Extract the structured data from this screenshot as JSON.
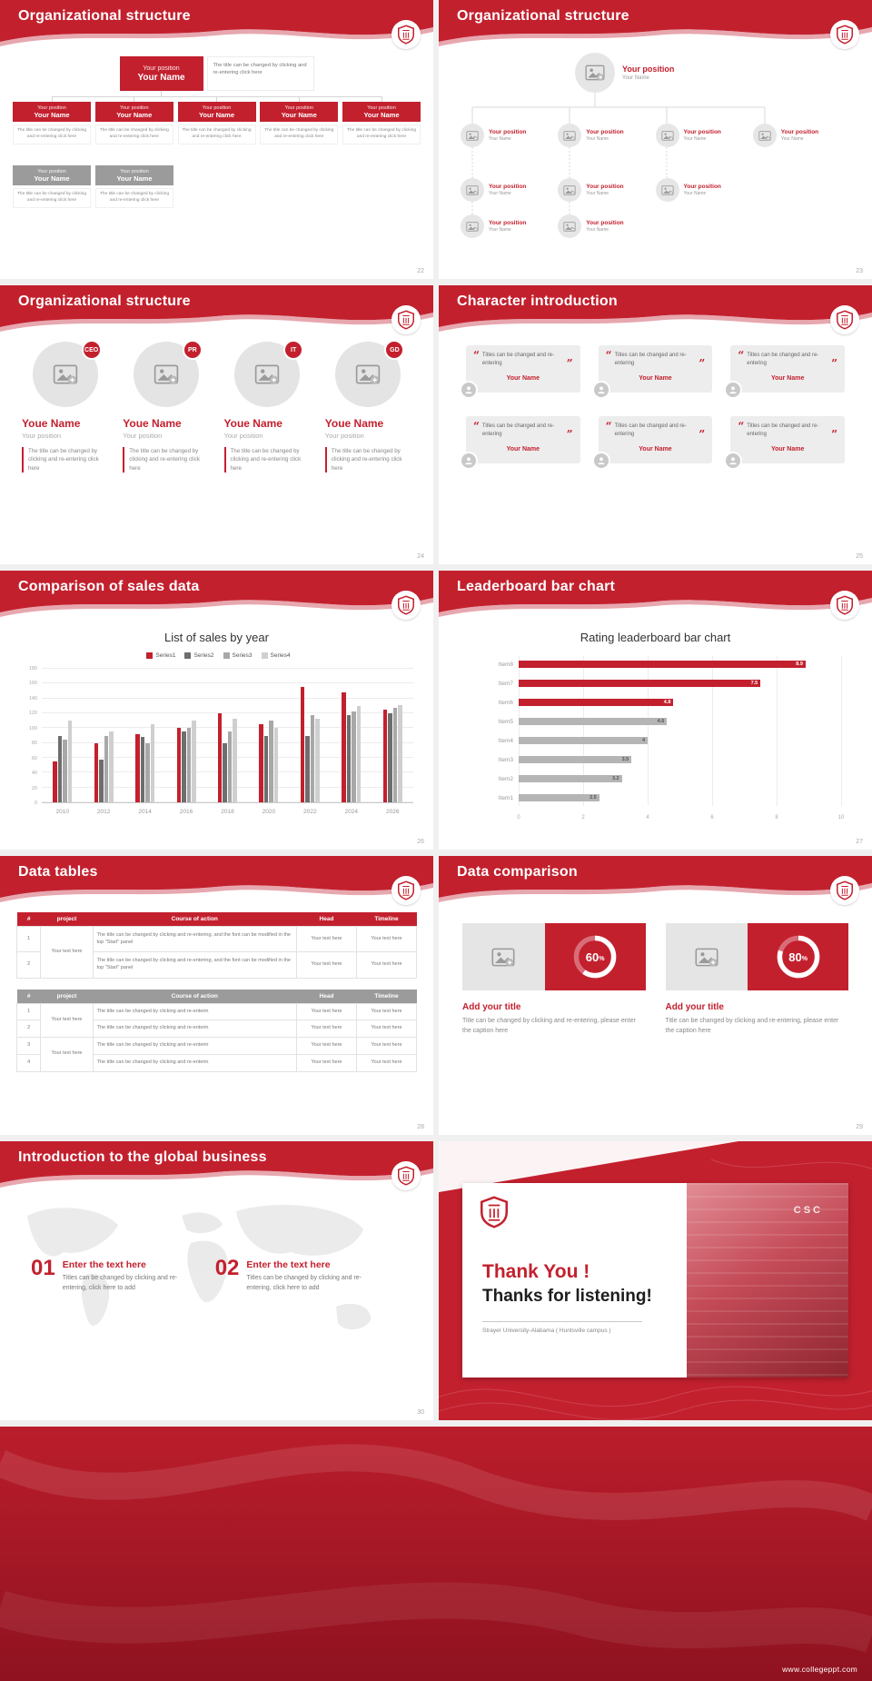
{
  "page": {
    "footer_url": "www.collegeppt.com"
  },
  "colors": {
    "accent_red": "#c3202e",
    "dark_red": "#9e1623",
    "gray_node": "#9b9b9b"
  },
  "slides": {
    "s22": {
      "title": "Organizational structure",
      "page": "22",
      "node_position": "Your position",
      "node_name": "Your Name",
      "node_desc": "The title can be changed by clicking and re-entering click here"
    },
    "s23": {
      "title": "Organizational structure",
      "page": "23",
      "node_position": "Your position",
      "node_name": "Your Name"
    },
    "s24": {
      "title": "Organizational structure",
      "page": "24",
      "badges": [
        "CEO",
        "PR",
        "IT",
        "GD"
      ],
      "member_name": "Youe Name",
      "member_position": "Your position",
      "member_desc": "The title can be changed by clicking and re-entering click here"
    },
    "s25": {
      "title": "Character introduction",
      "page": "25",
      "quote_open": "“",
      "quote_close": "”",
      "quote_text": "Titles can be changed and re-entering",
      "member_name": "Your Name"
    },
    "s26": {
      "title": "Comparison of sales data",
      "page": "26"
    },
    "s27": {
      "title": "Leaderboard bar chart",
      "page": "27"
    },
    "s28": {
      "title": "Data tables",
      "page": "28",
      "table1": {
        "headers": [
          "#",
          "project",
          "Course of action",
          "Head",
          "Timeline"
        ],
        "project_cell": "Your text here",
        "cell_text": "Your text here",
        "rows": [
          {
            "num": "1",
            "course": "The title can be changed by clicking and re-entering, and the font can be modified in the top \"Start\" panel"
          },
          {
            "num": "2",
            "course": "The title can be changed by clicking and re-entering, and the font can be modified in the top \"Start\" panel"
          }
        ]
      },
      "table2": {
        "headers": [
          "#",
          "project",
          "Course of action",
          "Head",
          "Timeline"
        ],
        "project_cell": "Your text here",
        "cell_text": "Your text here",
        "rows": [
          {
            "num": "1",
            "course": "The title can be changed by clicking and re-enterin"
          },
          {
            "num": "2",
            "course": "The title can be changed by clicking and re-enterin"
          },
          {
            "num": "3",
            "course": "The title can be changed by clicking and re-enterin"
          },
          {
            "num": "4",
            "course": "The title can be changed by clicking and re-enterin"
          }
        ]
      }
    },
    "s29": {
      "title": "Data comparison",
      "page": "29",
      "percent_sign": "%",
      "cards": [
        {
          "percent": 60,
          "heading": "Add your title",
          "caption": "Title can be changed by clicking and re-entering, please enter the caption here"
        },
        {
          "percent": 80,
          "heading": "Add your title",
          "caption": "Title can be changed by clicking and re-entering, please enter the caption here"
        }
      ]
    },
    "s30": {
      "title": "Introduction to the global business",
      "page": "30",
      "items": [
        {
          "num": "01",
          "heading": "Enter the text here",
          "caption": "Titles can be changed by clicking and re-entering, click here to add"
        },
        {
          "num": "02",
          "heading": "Enter the text here",
          "caption": "Titles can be changed by clicking and re-entering, click here to add"
        }
      ]
    },
    "thanks": {
      "title_red": "Thank You !",
      "title_dark": "Thanks for listening!",
      "subtitle": "Strayer University-Alabama ( Huntsville campus )",
      "building_text": "CSC"
    }
  },
  "chart_data": [
    {
      "id": "sales-by-year",
      "type": "bar",
      "title": "List of sales by year",
      "categories": [
        "2010",
        "2012",
        "2014",
        "2016",
        "2018",
        "2020",
        "2022",
        "2024",
        "2026"
      ],
      "series": [
        {
          "name": "Series1",
          "color": "#c3202e",
          "values": [
            55,
            80,
            92,
            100,
            120,
            105,
            155,
            148,
            125
          ]
        },
        {
          "name": "Series2",
          "color": "#6e6e6e",
          "values": [
            90,
            58,
            88,
            95,
            80,
            90,
            90,
            118,
            120
          ]
        },
        {
          "name": "Series3",
          "color": "#a8a8a8",
          "values": [
            85,
            90,
            80,
            100,
            95,
            110,
            118,
            123,
            127
          ]
        },
        {
          "name": "Series4",
          "color": "#cfcfcf",
          "values": [
            110,
            95,
            105,
            110,
            113,
            100,
            113,
            130,
            131
          ]
        }
      ],
      "ylim": [
        0,
        180
      ],
      "ytick_step": 20,
      "grid": true,
      "legend_position": "top"
    },
    {
      "id": "rating-leaderboard",
      "type": "bar-horizontal",
      "title": "Rating leaderboard bar chart",
      "categories": [
        "Item8",
        "Item7",
        "Item6",
        "Item5",
        "Item4",
        "Item3",
        "Item2",
        "Item1"
      ],
      "values": [
        8.9,
        7.5,
        4.8,
        4.6,
        4,
        3.5,
        3.2,
        2.5
      ],
      "colors": [
        "#c3202e",
        "#c3202e",
        "#c3202e",
        "#b5b5b5",
        "#b5b5b5",
        "#b5b5b5",
        "#b5b5b5",
        "#b5b5b5"
      ],
      "xlim": [
        0,
        10
      ],
      "xticks": [
        0,
        2,
        4,
        6,
        8,
        10
      ],
      "grid": true
    }
  ]
}
